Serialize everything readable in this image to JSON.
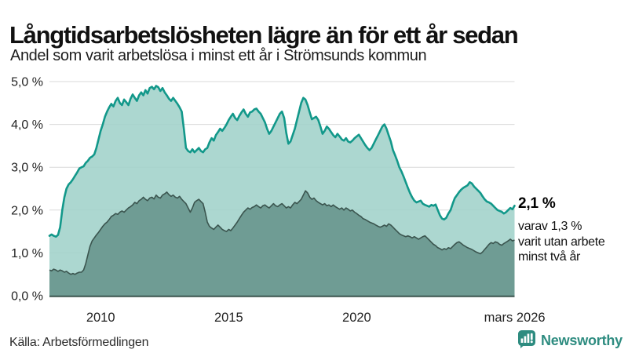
{
  "header": {
    "title": "Långtidsarbetslösheten lägre än för ett år sedan",
    "subtitle": "Andel som varit arbetslösa i minst ett år i Strömsunds kommun"
  },
  "annotation": {
    "latest_total": "2,1 %",
    "detail_lines": [
      "varav 1,3 %",
      "varit utan arbete",
      "minst två år"
    ]
  },
  "footer": {
    "source": "Källa: Arbetsförmedlingen",
    "brand": "Newsworthy"
  },
  "colors": {
    "total_line": "#12988a",
    "total_fill": "#a0d2c9",
    "two_year_line": "#3b554f",
    "two_year_fill": "#6f9c94",
    "grid": "#d9d9d9",
    "axis_text": "#222222",
    "brand": "#2e8c80"
  },
  "chart_data": {
    "type": "area",
    "title": "Långtidsarbetslösheten lägre än för ett år sedan",
    "subtitle": "Andel som varit arbetslösa i minst ett år i Strömsunds kommun",
    "unit": "%",
    "x_start_year": 2008.0,
    "x_step_years": 0.08333,
    "points_per_series": 219,
    "ylim": [
      0,
      5.0
    ],
    "grid": true,
    "legend": "none",
    "y_ticks": [
      {
        "value": 5,
        "label": "5,0 %"
      },
      {
        "value": 4,
        "label": "4,0 %"
      },
      {
        "value": 3,
        "label": "3,0 %"
      },
      {
        "value": 2,
        "label": "2,0 %"
      },
      {
        "value": 1,
        "label": "1,0 %"
      },
      {
        "value": 0,
        "label": "0,0 %"
      }
    ],
    "x_ticks": [
      {
        "value": 2010,
        "label": "2010"
      },
      {
        "value": 2015,
        "label": "2015"
      },
      {
        "value": 2020,
        "label": "2020"
      },
      {
        "value": 2026.17,
        "label": "mars 2026"
      }
    ],
    "series": [
      {
        "name": "Arbetslösa minst ett år",
        "latest_label": "2,1 %",
        "latest_value": 2.1,
        "values": [
          1.4,
          1.43,
          1.4,
          1.38,
          1.42,
          1.6,
          2.0,
          2.3,
          2.5,
          2.6,
          2.65,
          2.72,
          2.8,
          2.88,
          2.97,
          3.0,
          3.02,
          3.1,
          3.15,
          3.22,
          3.25,
          3.3,
          3.45,
          3.65,
          3.85,
          4.0,
          4.18,
          4.3,
          4.4,
          4.48,
          4.42,
          4.55,
          4.62,
          4.5,
          4.45,
          4.58,
          4.52,
          4.45,
          4.6,
          4.7,
          4.62,
          4.55,
          4.68,
          4.75,
          4.68,
          4.8,
          4.72,
          4.85,
          4.88,
          4.82,
          4.9,
          4.87,
          4.78,
          4.85,
          4.75,
          4.68,
          4.6,
          4.55,
          4.62,
          4.55,
          4.48,
          4.4,
          4.3,
          3.9,
          3.45,
          3.38,
          3.35,
          3.42,
          3.35,
          3.4,
          3.45,
          3.38,
          3.35,
          3.42,
          3.45,
          3.58,
          3.68,
          3.62,
          3.75,
          3.82,
          3.9,
          3.85,
          3.92,
          4.0,
          4.1,
          4.18,
          4.25,
          4.15,
          4.1,
          4.2,
          4.28,
          4.35,
          4.25,
          4.18,
          4.28,
          4.3,
          4.35,
          4.37,
          4.3,
          4.25,
          4.15,
          4.05,
          3.9,
          3.78,
          3.85,
          3.95,
          4.05,
          4.15,
          4.25,
          4.3,
          4.15,
          3.8,
          3.55,
          3.6,
          3.75,
          3.9,
          4.1,
          4.3,
          4.5,
          4.62,
          4.58,
          4.45,
          4.28,
          4.12,
          4.15,
          4.18,
          4.1,
          3.95,
          3.78,
          3.85,
          3.95,
          3.9,
          3.82,
          3.75,
          3.7,
          3.78,
          3.72,
          3.65,
          3.62,
          3.68,
          3.6,
          3.58,
          3.62,
          3.68,
          3.72,
          3.76,
          3.68,
          3.6,
          3.52,
          3.45,
          3.4,
          3.45,
          3.55,
          3.65,
          3.75,
          3.85,
          3.95,
          4.0,
          3.9,
          3.75,
          3.6,
          3.4,
          3.28,
          3.15,
          3.0,
          2.9,
          2.78,
          2.65,
          2.52,
          2.4,
          2.3,
          2.22,
          2.18,
          2.2,
          2.22,
          2.15,
          2.12,
          2.1,
          2.08,
          2.12,
          2.1,
          2.13,
          2.0,
          1.88,
          1.8,
          1.78,
          1.82,
          1.92,
          2.0,
          2.15,
          2.28,
          2.35,
          2.42,
          2.48,
          2.52,
          2.55,
          2.58,
          2.65,
          2.62,
          2.55,
          2.5,
          2.45,
          2.4,
          2.32,
          2.25,
          2.2,
          2.18,
          2.15,
          2.1,
          2.05,
          2.0,
          1.98,
          1.96,
          1.92,
          1.95,
          2.0,
          2.05,
          2.02,
          2.1
        ]
      },
      {
        "name": "Varav utan arbete minst två år",
        "latest_label": "1,3 %",
        "latest_value": 1.3,
        "values": [
          0.6,
          0.58,
          0.62,
          0.6,
          0.57,
          0.6,
          0.58,
          0.55,
          0.57,
          0.53,
          0.5,
          0.52,
          0.5,
          0.53,
          0.55,
          0.55,
          0.6,
          0.75,
          0.95,
          1.15,
          1.28,
          1.35,
          1.42,
          1.48,
          1.55,
          1.62,
          1.68,
          1.72,
          1.78,
          1.85,
          1.88,
          1.92,
          1.9,
          1.95,
          1.98,
          1.95,
          2.0,
          2.05,
          2.08,
          2.12,
          2.18,
          2.15,
          2.22,
          2.25,
          2.3,
          2.25,
          2.22,
          2.28,
          2.3,
          2.26,
          2.35,
          2.3,
          2.28,
          2.35,
          2.38,
          2.42,
          2.36,
          2.32,
          2.35,
          2.3,
          2.28,
          2.32,
          2.25,
          2.2,
          2.15,
          2.05,
          1.95,
          2.05,
          2.18,
          2.22,
          2.25,
          2.2,
          2.15,
          1.95,
          1.72,
          1.62,
          1.58,
          1.55,
          1.6,
          1.65,
          1.6,
          1.55,
          1.52,
          1.5,
          1.55,
          1.52,
          1.58,
          1.65,
          1.72,
          1.8,
          1.88,
          1.95,
          2.0,
          2.05,
          2.02,
          2.06,
          2.08,
          2.12,
          2.08,
          2.05,
          2.1,
          2.12,
          2.08,
          2.05,
          2.1,
          2.15,
          2.1,
          2.08,
          2.12,
          2.15,
          2.1,
          2.05,
          2.08,
          2.05,
          2.12,
          2.18,
          2.15,
          2.2,
          2.25,
          2.35,
          2.45,
          2.4,
          2.3,
          2.25,
          2.28,
          2.22,
          2.18,
          2.15,
          2.12,
          2.15,
          2.1,
          2.12,
          2.08,
          2.12,
          2.08,
          2.05,
          2.02,
          2.05,
          2.0,
          2.05,
          2.02,
          1.98,
          2.0,
          1.95,
          1.92,
          1.88,
          1.85,
          1.8,
          1.78,
          1.75,
          1.72,
          1.7,
          1.68,
          1.65,
          1.62,
          1.6,
          1.62,
          1.65,
          1.62,
          1.68,
          1.65,
          1.6,
          1.55,
          1.5,
          1.45,
          1.42,
          1.4,
          1.38,
          1.4,
          1.38,
          1.35,
          1.38,
          1.35,
          1.32,
          1.35,
          1.38,
          1.4,
          1.35,
          1.3,
          1.25,
          1.2,
          1.17,
          1.12,
          1.1,
          1.07,
          1.1,
          1.08,
          1.12,
          1.1,
          1.15,
          1.2,
          1.24,
          1.26,
          1.22,
          1.18,
          1.15,
          1.12,
          1.1,
          1.08,
          1.05,
          1.02,
          1.0,
          0.98,
          1.02,
          1.08,
          1.14,
          1.2,
          1.24,
          1.22,
          1.26,
          1.24,
          1.2,
          1.18,
          1.22,
          1.25,
          1.28,
          1.32,
          1.28,
          1.3
        ]
      }
    ]
  }
}
